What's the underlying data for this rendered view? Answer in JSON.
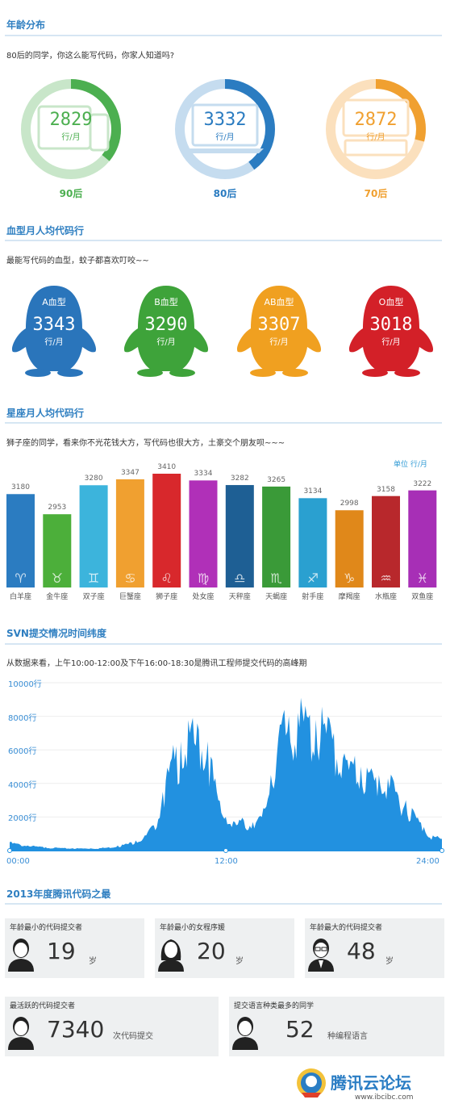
{
  "sections": {
    "age": {
      "title": "年龄分布",
      "subtitle": "80后的同学，你这么能写代码，你家人知道吗?"
    },
    "blood": {
      "title": "血型月人均代码行",
      "subtitle": "最能写代码的血型，蚊子都喜欢叮咬~~"
    },
    "zodiac": {
      "title": "星座月人均代码行",
      "subtitle": "狮子座的同学，看来你不光花钱大方，写代码也很大方，土豪交个朋友呗~~~",
      "unit_note": "单位 行/月"
    },
    "svn": {
      "title": "SVN提交情况时间纬度",
      "subtitle": "从数据来看，上午10:00-12:00及下午16:00-18:30是腾讯工程师提交代码的高峰期"
    },
    "records": {
      "title": "2013年度腾讯代码之最"
    }
  },
  "age_rings": [
    {
      "label": "90后",
      "value": "2829",
      "unit": "行/月",
      "color": "#4caf50",
      "light": "#c8e6c9",
      "icon": "mobile-devices-icon",
      "fraction": 0.36
    },
    {
      "label": "80后",
      "value": "3332",
      "unit": "行/月",
      "color": "#2b7cc1",
      "light": "#c5dcef",
      "icon": "laptop-icon",
      "fraction": 0.4
    },
    {
      "label": "70后",
      "value": "2872",
      "unit": "行/月",
      "color": "#f0a030",
      "light": "#fbe0bd",
      "icon": "desktop-computer-icon",
      "fraction": 0.29
    }
  ],
  "blood_types": [
    {
      "type": "A血型",
      "value": "3343",
      "unit": "行/月",
      "color": "#2a75bb"
    },
    {
      "type": "B血型",
      "value": "3290",
      "unit": "行/月",
      "color": "#3ea33a"
    },
    {
      "type": "AB血型",
      "value": "3307",
      "unit": "行/月",
      "color": "#f0a020"
    },
    {
      "type": "O血型",
      "value": "3018",
      "unit": "行/月",
      "color": "#d32028"
    }
  ],
  "chart_data": [
    {
      "type": "bar",
      "title": "星座月人均代码行",
      "unit": "单位 行/月",
      "categories": [
        "白羊座",
        "金牛座",
        "双子座",
        "巨蟹座",
        "狮子座",
        "处女座",
        "天秤座",
        "天蝎座",
        "射手座",
        "摩羯座",
        "水瓶座",
        "双鱼座"
      ],
      "values": [
        3180,
        2953,
        3280,
        3347,
        3410,
        3334,
        3282,
        3265,
        3134,
        2998,
        3158,
        3222
      ],
      "colors": [
        "#2b7cc1",
        "#4caf3a",
        "#3cb4dc",
        "#f0a030",
        "#d8282c",
        "#b030b8",
        "#1e5f94",
        "#3a9a38",
        "#2aa0d0",
        "#e0881a",
        "#b8282c",
        "#a72fb6"
      ],
      "symbols": [
        "♈",
        "♉",
        "♊",
        "♋",
        "♌",
        "♍",
        "♎",
        "♏",
        "♐",
        "♑",
        "♒",
        "♓"
      ]
    },
    {
      "type": "area",
      "title": "SVN提交情况时间纬度",
      "x_ticks": [
        "00:00",
        "12:00",
        "24:00"
      ],
      "y_ticks": [
        "2000行",
        "4000行",
        "6000行",
        "8000行",
        "10000行"
      ],
      "ylim": [
        0,
        10000
      ],
      "xlim": [
        0,
        24
      ],
      "color": "#2291e0",
      "x": [
        0,
        0.5,
        1,
        1.5,
        2,
        2.5,
        3,
        3.5,
        4,
        4.5,
        5,
        5.5,
        6,
        6.5,
        7,
        7.5,
        8,
        8.5,
        9,
        9.5,
        10,
        10.5,
        11,
        11.5,
        12,
        12.5,
        13,
        13.5,
        14,
        14.5,
        15,
        15.5,
        16,
        16.5,
        17,
        17.5,
        18,
        18.5,
        19,
        19.5,
        20,
        20.5,
        21,
        21.5,
        22,
        22.5,
        23,
        23.5,
        24
      ],
      "y": [
        500,
        400,
        300,
        250,
        200,
        180,
        150,
        140,
        130,
        130,
        150,
        200,
        300,
        400,
        600,
        900,
        1500,
        3500,
        5500,
        6500,
        7000,
        7200,
        6500,
        3500,
        2000,
        1700,
        1800,
        1700,
        2000,
        4500,
        7500,
        8000,
        8200,
        8000,
        7800,
        7600,
        7000,
        5500,
        5300,
        5000,
        4700,
        4500,
        4300,
        3500,
        3000,
        2200,
        1400,
        900,
        700
      ]
    }
  ],
  "records": {
    "youngest": {
      "title": "年龄最小的代码提交者",
      "value": "19",
      "unit": "岁"
    },
    "youngest_female": {
      "title": "年龄最小的女程序媛",
      "value": "20",
      "unit": "岁"
    },
    "oldest": {
      "title": "年龄最大的代码提交者",
      "value": "48",
      "unit": "岁"
    },
    "most_active": {
      "title": "最活跃的代码提交者",
      "value": "7340",
      "unit": "次代码提交"
    },
    "most_languages": {
      "title": "提交语言种类最多的同学",
      "value": "52",
      "unit": "种编程语言"
    }
  },
  "watermark": {
    "brand": "腾讯云论坛",
    "url": "www.ibcibc.com"
  }
}
